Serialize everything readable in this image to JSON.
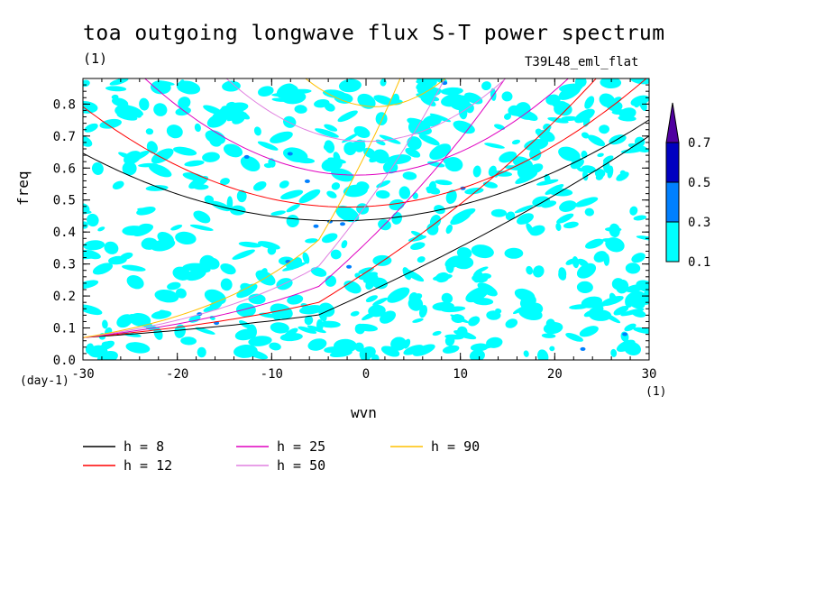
{
  "title": "toa outgoing longwave flux S-T power spectrum",
  "subtitle_left": "(1)",
  "subtitle_right": "T39L48_eml_flat",
  "chart_data": {
    "type": "heatmap",
    "xlabel": "wvn",
    "ylabel": "freq",
    "x_unit": "(1)",
    "y_unit": "(day-1)",
    "xlim": [
      -30,
      30
    ],
    "ylim": [
      0,
      0.88
    ],
    "x_ticks": [
      -30,
      -20,
      -10,
      0,
      10,
      20,
      30
    ],
    "x_tick_labels": [
      "-30",
      "-20",
      "-10",
      "0",
      "10",
      "20",
      "30"
    ],
    "y_ticks": [
      0,
      0.1,
      0.2,
      0.3,
      0.4,
      0.5,
      0.6,
      0.7,
      0.8
    ],
    "y_tick_labels": [
      "0.0",
      "0.1",
      "0.2",
      "0.3",
      "0.4",
      "0.5",
      "0.6",
      "0.7",
      "0.8"
    ],
    "colorbar": {
      "levels": [
        "0.1",
        "0.3",
        "0.5",
        "0.7"
      ],
      "colors": [
        "#00ffff",
        "#0080ff",
        "#0000c0",
        "#5000a0"
      ]
    },
    "dispersion_curves": [
      {
        "name": "h =  8",
        "color": "#000000"
      },
      {
        "name": "h = 12",
        "color": "#ff0000"
      },
      {
        "name": "h = 25",
        "color": "#e000c0"
      },
      {
        "name": "h = 50",
        "color": "#e080e0"
      },
      {
        "name": "h = 90",
        "color": "#ffc000"
      }
    ],
    "grid": false
  }
}
